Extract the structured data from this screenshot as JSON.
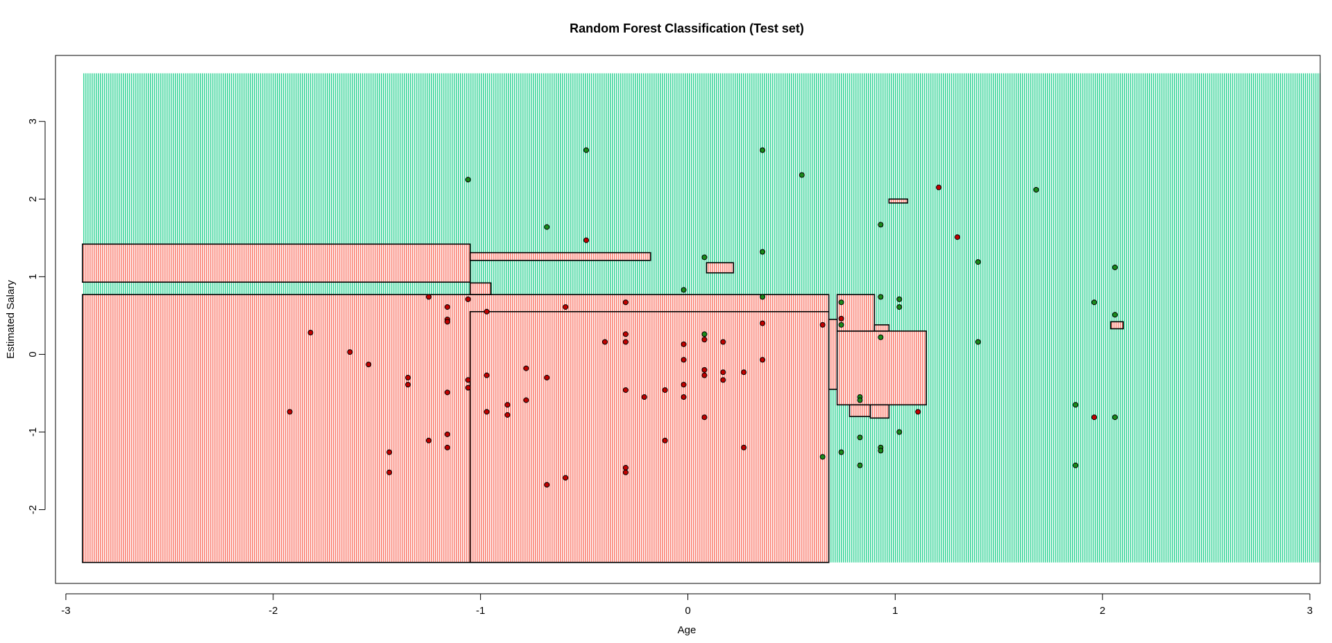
{
  "chart_data": {
    "type": "scatter",
    "title": "Random Forest Classification (Test set)",
    "xlabel": "Age",
    "ylabel": "Estimated Salary",
    "xlim": [
      -3.05,
      3.05
    ],
    "ylim": [
      -2.95,
      3.85
    ],
    "xticks": [
      -3,
      -2,
      -1,
      0,
      1,
      2,
      3
    ],
    "yticks": [
      -2,
      -1,
      0,
      1,
      2,
      3
    ],
    "grid": false,
    "region_colors": {
      "class_0": "#fa8072",
      "class_1": "#3cd59b"
    },
    "point_colors": {
      "class_0": "#c00000",
      "class_1": "#1a8a1a"
    },
    "region_extent": {
      "x": [
        -2.92,
        3.05
      ],
      "y": [
        -2.68,
        3.62
      ]
    },
    "class_0_regions": [
      [
        -2.92,
        0.68,
        -2.68,
        0.77
      ],
      [
        -2.92,
        -1.05,
        0.93,
        1.42
      ],
      [
        -1.05,
        0.68,
        -2.68,
        0.55
      ],
      [
        -1.05,
        -0.95,
        0.77,
        0.92
      ],
      [
        -1.05,
        -0.18,
        1.21,
        1.31
      ],
      [
        0.68,
        0.72,
        -0.45,
        0.45
      ],
      [
        0.72,
        1.15,
        -0.65,
        0.3
      ],
      [
        0.72,
        0.9,
        0.3,
        0.77
      ],
      [
        0.9,
        0.97,
        0.3,
        0.38
      ],
      [
        0.78,
        0.88,
        -0.8,
        -0.65
      ],
      [
        0.88,
        0.97,
        -0.82,
        -0.65
      ],
      [
        2.04,
        2.1,
        0.33,
        0.42
      ],
      [
        0.09,
        0.22,
        1.05,
        1.18
      ],
      [
        0.97,
        1.06,
        1.95,
        2.0
      ]
    ],
    "class_0_points": [
      {
        "x": -1.92,
        "y": -0.74
      },
      {
        "x": -1.82,
        "y": 0.28
      },
      {
        "x": -1.63,
        "y": 0.03
      },
      {
        "x": -1.54,
        "y": -0.13
      },
      {
        "x": -1.44,
        "y": -1.26
      },
      {
        "x": -1.44,
        "y": -1.52
      },
      {
        "x": -1.35,
        "y": -0.3
      },
      {
        "x": -1.35,
        "y": -0.39
      },
      {
        "x": -1.25,
        "y": -1.11
      },
      {
        "x": -1.25,
        "y": 0.74
      },
      {
        "x": -1.16,
        "y": 0.61
      },
      {
        "x": -1.16,
        "y": 0.45
      },
      {
        "x": -1.16,
        "y": 0.42
      },
      {
        "x": -1.16,
        "y": -0.49
      },
      {
        "x": -1.16,
        "y": -1.03
      },
      {
        "x": -1.16,
        "y": -1.2
      },
      {
        "x": -1.06,
        "y": 0.71
      },
      {
        "x": -1.06,
        "y": -0.33
      },
      {
        "x": -1.06,
        "y": -0.43
      },
      {
        "x": -0.97,
        "y": 0.55
      },
      {
        "x": -0.97,
        "y": -0.27
      },
      {
        "x": -0.97,
        "y": -0.74
      },
      {
        "x": -0.87,
        "y": -0.65
      },
      {
        "x": -0.87,
        "y": -0.78
      },
      {
        "x": -0.78,
        "y": -0.18
      },
      {
        "x": -0.78,
        "y": -0.59
      },
      {
        "x": -0.68,
        "y": -0.3
      },
      {
        "x": -0.68,
        "y": -1.68
      },
      {
        "x": -0.59,
        "y": 0.61
      },
      {
        "x": -0.59,
        "y": -1.59
      },
      {
        "x": -0.49,
        "y": 1.47
      },
      {
        "x": -0.4,
        "y": 0.16
      },
      {
        "x": -0.3,
        "y": 0.67
      },
      {
        "x": -0.3,
        "y": 0.26
      },
      {
        "x": -0.3,
        "y": 0.16
      },
      {
        "x": -0.3,
        "y": -0.46
      },
      {
        "x": -0.3,
        "y": -1.46
      },
      {
        "x": -0.3,
        "y": -1.52
      },
      {
        "x": -0.21,
        "y": -0.55
      },
      {
        "x": -0.11,
        "y": -0.46
      },
      {
        "x": -0.11,
        "y": -1.11
      },
      {
        "x": -0.02,
        "y": 0.13
      },
      {
        "x": -0.02,
        "y": -0.07
      },
      {
        "x": -0.02,
        "y": -0.39
      },
      {
        "x": -0.02,
        "y": -0.55
      },
      {
        "x": 0.08,
        "y": 0.19
      },
      {
        "x": 0.08,
        "y": -0.2
      },
      {
        "x": 0.08,
        "y": -0.27
      },
      {
        "x": 0.08,
        "y": -0.81
      },
      {
        "x": 0.17,
        "y": 0.16
      },
      {
        "x": 0.17,
        "y": -0.23
      },
      {
        "x": 0.17,
        "y": -0.33
      },
      {
        "x": 0.27,
        "y": -0.23
      },
      {
        "x": 0.27,
        "y": -1.2
      },
      {
        "x": 0.36,
        "y": 0.4
      },
      {
        "x": 0.36,
        "y": -0.07
      },
      {
        "x": 0.65,
        "y": 0.38
      },
      {
        "x": 0.74,
        "y": 0.46
      },
      {
        "x": 1.11,
        "y": -0.74
      },
      {
        "x": 1.21,
        "y": 2.15
      },
      {
        "x": 1.3,
        "y": 1.51
      },
      {
        "x": 1.96,
        "y": -0.81
      }
    ],
    "class_1_points": [
      {
        "x": -1.06,
        "y": 2.25
      },
      {
        "x": -0.68,
        "y": 1.64
      },
      {
        "x": -0.49,
        "y": 2.63
      },
      {
        "x": -0.02,
        "y": 0.83
      },
      {
        "x": 0.08,
        "y": 1.25
      },
      {
        "x": 0.08,
        "y": 0.26
      },
      {
        "x": 0.36,
        "y": 2.63
      },
      {
        "x": 0.36,
        "y": 1.32
      },
      {
        "x": 0.36,
        "y": 0.74
      },
      {
        "x": 0.55,
        "y": 2.31
      },
      {
        "x": 0.65,
        "y": -1.32
      },
      {
        "x": 0.74,
        "y": 0.67
      },
      {
        "x": 0.74,
        "y": 0.38
      },
      {
        "x": 0.74,
        "y": -1.26
      },
      {
        "x": 0.83,
        "y": -0.55
      },
      {
        "x": 0.83,
        "y": -0.59
      },
      {
        "x": 0.83,
        "y": -1.07
      },
      {
        "x": 0.83,
        "y": -1.43
      },
      {
        "x": 0.93,
        "y": 1.67
      },
      {
        "x": 0.93,
        "y": 0.74
      },
      {
        "x": 0.93,
        "y": 0.22
      },
      {
        "x": 0.93,
        "y": -1.2
      },
      {
        "x": 0.93,
        "y": -1.24
      },
      {
        "x": 1.02,
        "y": 0.71
      },
      {
        "x": 1.02,
        "y": 0.61
      },
      {
        "x": 1.02,
        "y": -1.0
      },
      {
        "x": 1.4,
        "y": 1.19
      },
      {
        "x": 1.4,
        "y": 0.16
      },
      {
        "x": 1.68,
        "y": 2.12
      },
      {
        "x": 1.87,
        "y": -0.65
      },
      {
        "x": 1.87,
        "y": -1.43
      },
      {
        "x": 1.96,
        "y": 0.67
      },
      {
        "x": 2.06,
        "y": 1.12
      },
      {
        "x": 2.06,
        "y": 0.51
      },
      {
        "x": 2.06,
        "y": -0.81
      }
    ]
  }
}
